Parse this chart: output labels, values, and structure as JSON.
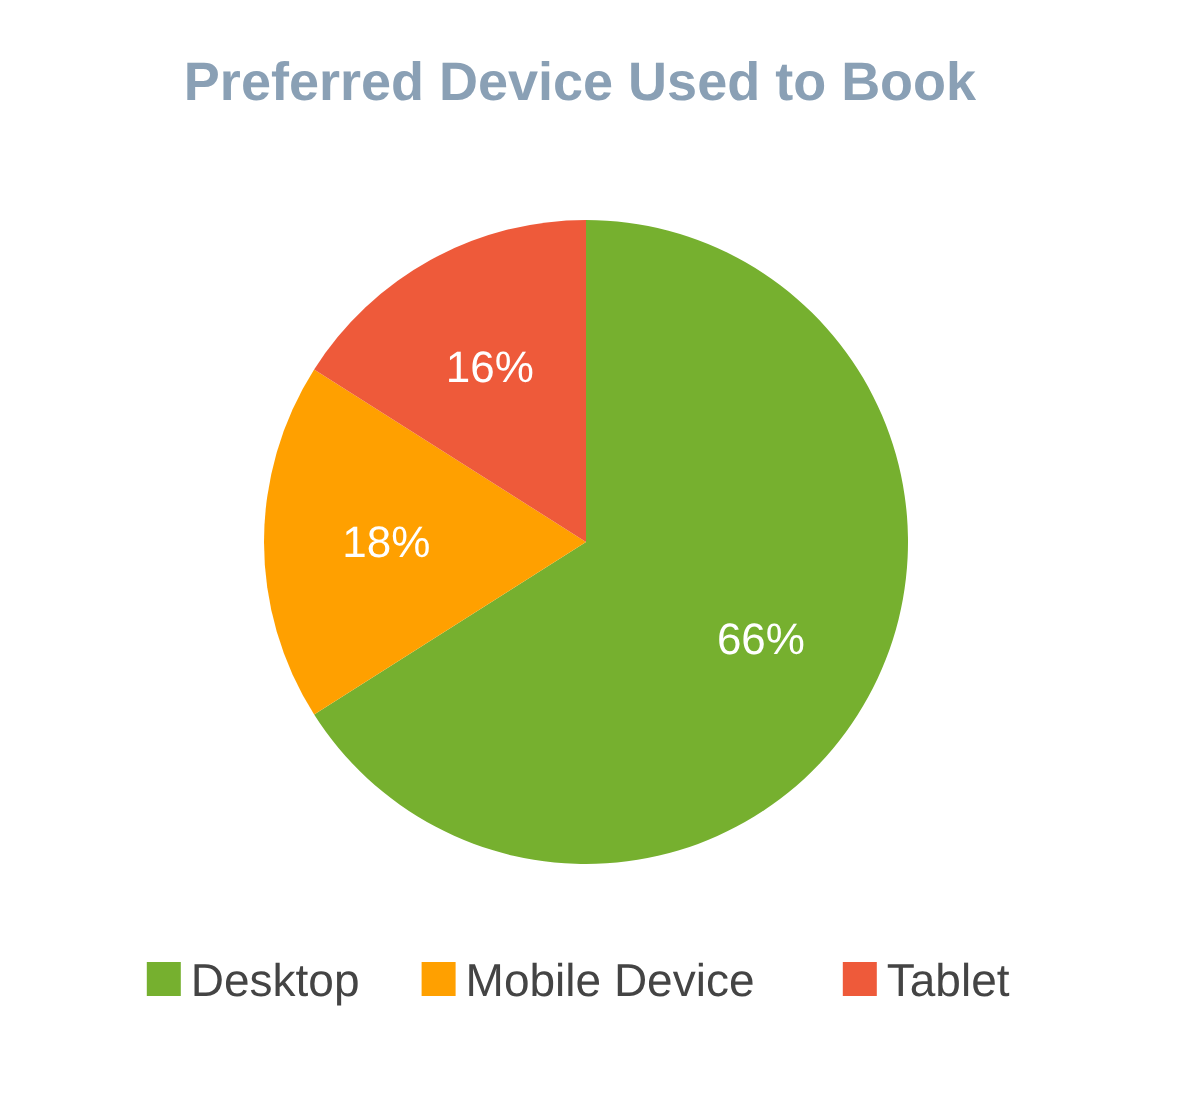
{
  "chart_data": {
    "type": "pie",
    "title": "Preferred Device Used to Book",
    "categories": [
      "Desktop",
      "Mobile Device",
      "Tablet"
    ],
    "values": [
      66,
      18,
      16
    ],
    "colors": [
      "#76b02f",
      "#ffa000",
      "#ee5a3a"
    ],
    "value_labels": [
      "66%",
      "18%",
      "16%"
    ],
    "legend": "bottom"
  }
}
